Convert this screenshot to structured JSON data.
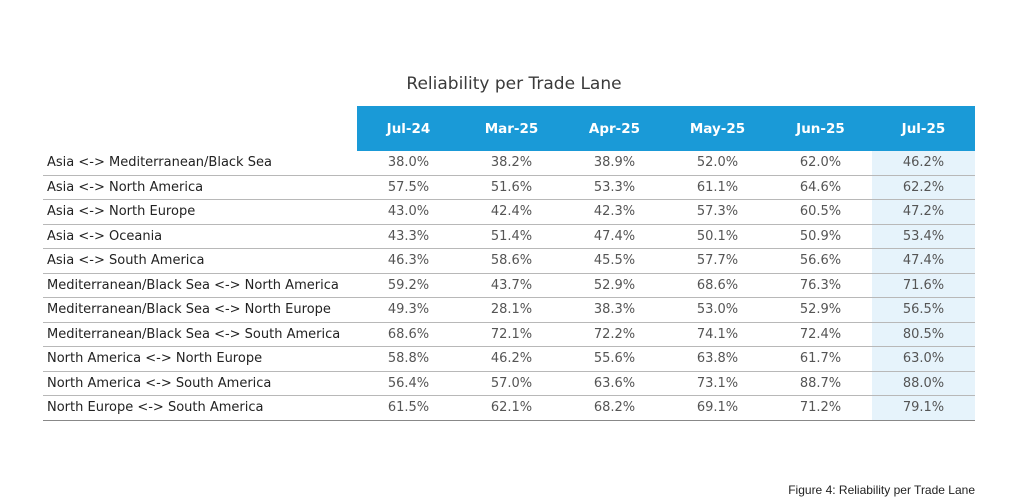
{
  "chart_data": {
    "type": "table",
    "title": "Reliability per Trade Lane",
    "columns": [
      "Jul-24",
      "Mar-25",
      "Apr-25",
      "May-25",
      "Jun-25",
      "Jul-25"
    ],
    "rows": [
      {
        "label": "Asia <-> Mediterranean/Black Sea",
        "values": [
          "38.0%",
          "38.2%",
          "38.9%",
          "52.0%",
          "62.0%",
          "46.2%"
        ]
      },
      {
        "label": "Asia <-> North America",
        "values": [
          "57.5%",
          "51.6%",
          "53.3%",
          "61.1%",
          "64.6%",
          "62.2%"
        ]
      },
      {
        "label": "Asia <-> North Europe",
        "values": [
          "43.0%",
          "42.4%",
          "42.3%",
          "57.3%",
          "60.5%",
          "47.2%"
        ]
      },
      {
        "label": "Asia <-> Oceania",
        "values": [
          "43.3%",
          "51.4%",
          "47.4%",
          "50.1%",
          "50.9%",
          "53.4%"
        ]
      },
      {
        "label": "Asia <-> South America",
        "values": [
          "46.3%",
          "58.6%",
          "45.5%",
          "57.7%",
          "56.6%",
          "47.4%"
        ]
      },
      {
        "label": "Mediterranean/Black Sea <-> North America",
        "values": [
          "59.2%",
          "43.7%",
          "52.9%",
          "68.6%",
          "76.3%",
          "71.6%"
        ]
      },
      {
        "label": "Mediterranean/Black Sea <-> North Europe",
        "values": [
          "49.3%",
          "28.1%",
          "38.3%",
          "53.0%",
          "52.9%",
          "56.5%"
        ]
      },
      {
        "label": "Mediterranean/Black Sea <-> South America",
        "values": [
          "68.6%",
          "72.1%",
          "72.2%",
          "74.1%",
          "72.4%",
          "80.5%"
        ]
      },
      {
        "label": "North America <-> North Europe",
        "values": [
          "58.8%",
          "46.2%",
          "55.6%",
          "63.8%",
          "61.7%",
          "63.0%"
        ]
      },
      {
        "label": "North America <-> South America",
        "values": [
          "56.4%",
          "57.0%",
          "63.6%",
          "73.1%",
          "88.7%",
          "88.0%"
        ]
      },
      {
        "label": "North Europe <-> South America",
        "values": [
          "61.5%",
          "62.1%",
          "68.2%",
          "69.1%",
          "71.2%",
          "79.1%"
        ]
      }
    ],
    "highlight_column": "Jul-25",
    "colors": {
      "header_bg": "#1a9ad7",
      "header_text": "#ffffff",
      "highlight_bg": "#e6f3fb"
    }
  },
  "caption": "Figure 4: Reliability per Trade Lane"
}
